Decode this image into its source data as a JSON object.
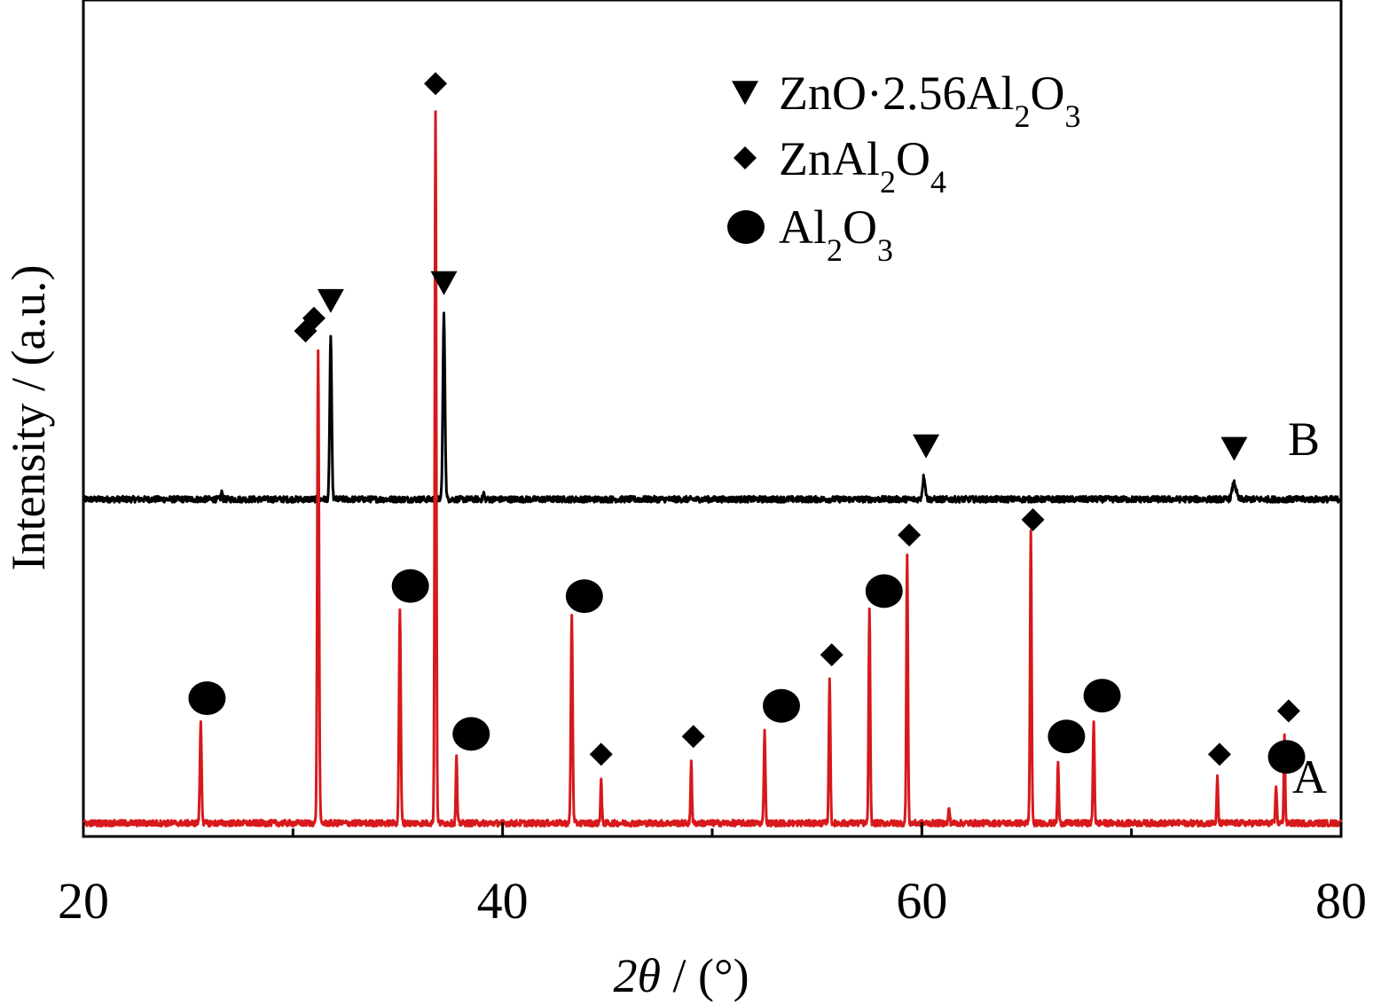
{
  "chart_data": {
    "type": "line",
    "xlabel": {
      "italic": "2θ",
      "rest": " / (°)"
    },
    "ylabel": "Intensity / (a.u.)",
    "xlim": [
      20,
      80
    ],
    "xticks": [
      20,
      40,
      60,
      80
    ],
    "minor_xticks": [
      30,
      50,
      70
    ],
    "grid": false,
    "legend_position": "top-right",
    "colors": {
      "A": "#d7191c",
      "B": "#000000",
      "markers": "#000000"
    },
    "legend": [
      {
        "marker": "triangle-down",
        "label": {
          "pre": "ZnO·2.56Al",
          "sub1": "2",
          "mid": "O",
          "sub2": "3"
        }
      },
      {
        "marker": "diamond",
        "label": {
          "pre": "ZnAl",
          "sub1": "2",
          "mid": "O",
          "sub2": "4"
        }
      },
      {
        "marker": "circle",
        "label": {
          "pre": "Al",
          "sub1": "2",
          "mid": "O",
          "sub2": "3"
        }
      }
    ],
    "series": [
      {
        "name": "A",
        "baseline": 0,
        "peaks": [
          {
            "x": 25.6,
            "h": 0.195,
            "w": 0.09
          },
          {
            "x": 31.2,
            "h": 0.93,
            "w": 0.09
          },
          {
            "x": 35.1,
            "h": 0.42,
            "w": 0.09
          },
          {
            "x": 36.8,
            "h": 1.4,
            "w": 0.08
          },
          {
            "x": 37.8,
            "h": 0.13,
            "w": 0.07
          },
          {
            "x": 43.3,
            "h": 0.405,
            "w": 0.09
          },
          {
            "x": 44.7,
            "h": 0.085,
            "w": 0.07
          },
          {
            "x": 49.0,
            "h": 0.125,
            "w": 0.07
          },
          {
            "x": 52.5,
            "h": 0.18,
            "w": 0.08
          },
          {
            "x": 55.6,
            "h": 0.285,
            "w": 0.08
          },
          {
            "x": 57.5,
            "h": 0.42,
            "w": 0.08
          },
          {
            "x": 59.3,
            "h": 0.525,
            "w": 0.08
          },
          {
            "x": 61.3,
            "h": 0.03,
            "w": 0.07
          },
          {
            "x": 65.2,
            "h": 0.57,
            "w": 0.08
          },
          {
            "x": 66.5,
            "h": 0.12,
            "w": 0.07
          },
          {
            "x": 68.2,
            "h": 0.2,
            "w": 0.08
          },
          {
            "x": 74.1,
            "h": 0.09,
            "w": 0.07
          },
          {
            "x": 76.9,
            "h": 0.075,
            "w": 0.07
          },
          {
            "x": 77.3,
            "h": 0.17,
            "w": 0.07
          }
        ],
        "markers": [
          {
            "x": 25.9,
            "y": 0.245,
            "shape": "circle"
          },
          {
            "x": 31.0,
            "y": 0.99,
            "shape": "diamond"
          },
          {
            "x": 35.6,
            "y": 0.465,
            "shape": "circle"
          },
          {
            "x": 36.8,
            "y": 1.45,
            "shape": "diamond"
          },
          {
            "x": 38.5,
            "y": 0.175,
            "shape": "circle"
          },
          {
            "x": 43.9,
            "y": 0.445,
            "shape": "circle"
          },
          {
            "x": 44.7,
            "y": 0.135,
            "shape": "diamond"
          },
          {
            "x": 49.1,
            "y": 0.17,
            "shape": "diamond"
          },
          {
            "x": 53.3,
            "y": 0.23,
            "shape": "circle"
          },
          {
            "x": 55.7,
            "y": 0.33,
            "shape": "diamond"
          },
          {
            "x": 58.2,
            "y": 0.455,
            "shape": "circle"
          },
          {
            "x": 59.4,
            "y": 0.565,
            "shape": "diamond"
          },
          {
            "x": 65.3,
            "y": 0.595,
            "shape": "diamond"
          },
          {
            "x": 66.9,
            "y": 0.17,
            "shape": "circle"
          },
          {
            "x": 68.6,
            "y": 0.25,
            "shape": "circle"
          },
          {
            "x": 74.2,
            "y": 0.135,
            "shape": "diamond"
          },
          {
            "x": 77.5,
            "y": 0.22,
            "shape": "diamond"
          },
          {
            "x": 77.4,
            "y": 0.13,
            "shape": "circle"
          }
        ]
      },
      {
        "name": "B",
        "baseline": 0.635,
        "peaks": [
          {
            "x": 26.6,
            "h": 0.015,
            "w": 0.07
          },
          {
            "x": 31.8,
            "h": 0.32,
            "w": 0.1
          },
          {
            "x": 37.2,
            "h": 0.36,
            "w": 0.11
          },
          {
            "x": 39.1,
            "h": 0.012,
            "w": 0.07
          },
          {
            "x": 60.1,
            "h": 0.045,
            "w": 0.14
          },
          {
            "x": 74.9,
            "h": 0.032,
            "w": 0.2
          }
        ],
        "markers": [
          {
            "x": 30.6,
            "y": 0.965,
            "shape": "diamond"
          },
          {
            "x": 31.8,
            "y": 1.025,
            "shape": "triangle-down"
          },
          {
            "x": 37.2,
            "y": 1.06,
            "shape": "triangle-down"
          },
          {
            "x": 60.2,
            "y": 0.74,
            "shape": "triangle-down"
          },
          {
            "x": 74.9,
            "y": 0.735,
            "shape": "triangle-down"
          }
        ]
      }
    ]
  }
}
